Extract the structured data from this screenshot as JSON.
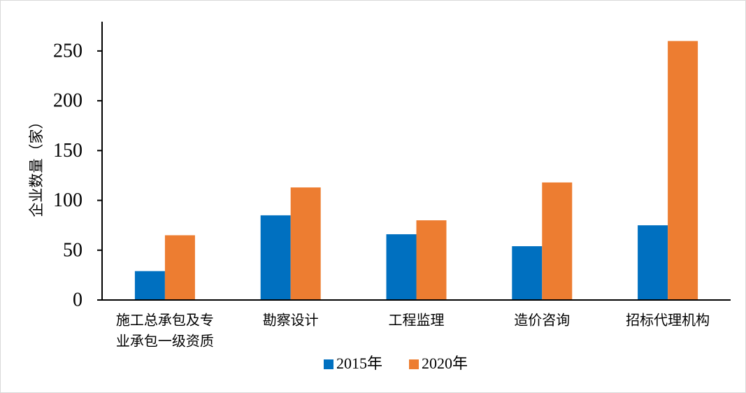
{
  "chart_data": {
    "type": "bar",
    "ylabel": "企业数量（家）",
    "ylim": [
      0,
      280
    ],
    "yticks": [
      0,
      50,
      100,
      150,
      200,
      250
    ],
    "categories": [
      [
        "施工总承包及专",
        "业承包一级资质"
      ],
      [
        "勘察设计"
      ],
      [
        "工程监理"
      ],
      [
        "造价咨询"
      ],
      [
        "招标代理机构"
      ]
    ],
    "series": [
      {
        "name": "2015年",
        "color": "#0070c0",
        "values": [
          29,
          85,
          66,
          54,
          75
        ]
      },
      {
        "name": "2020年",
        "color": "#ed7d31",
        "values": [
          65,
          113,
          80,
          118,
          260
        ]
      }
    ],
    "legend": "bottom",
    "grid": false
  }
}
